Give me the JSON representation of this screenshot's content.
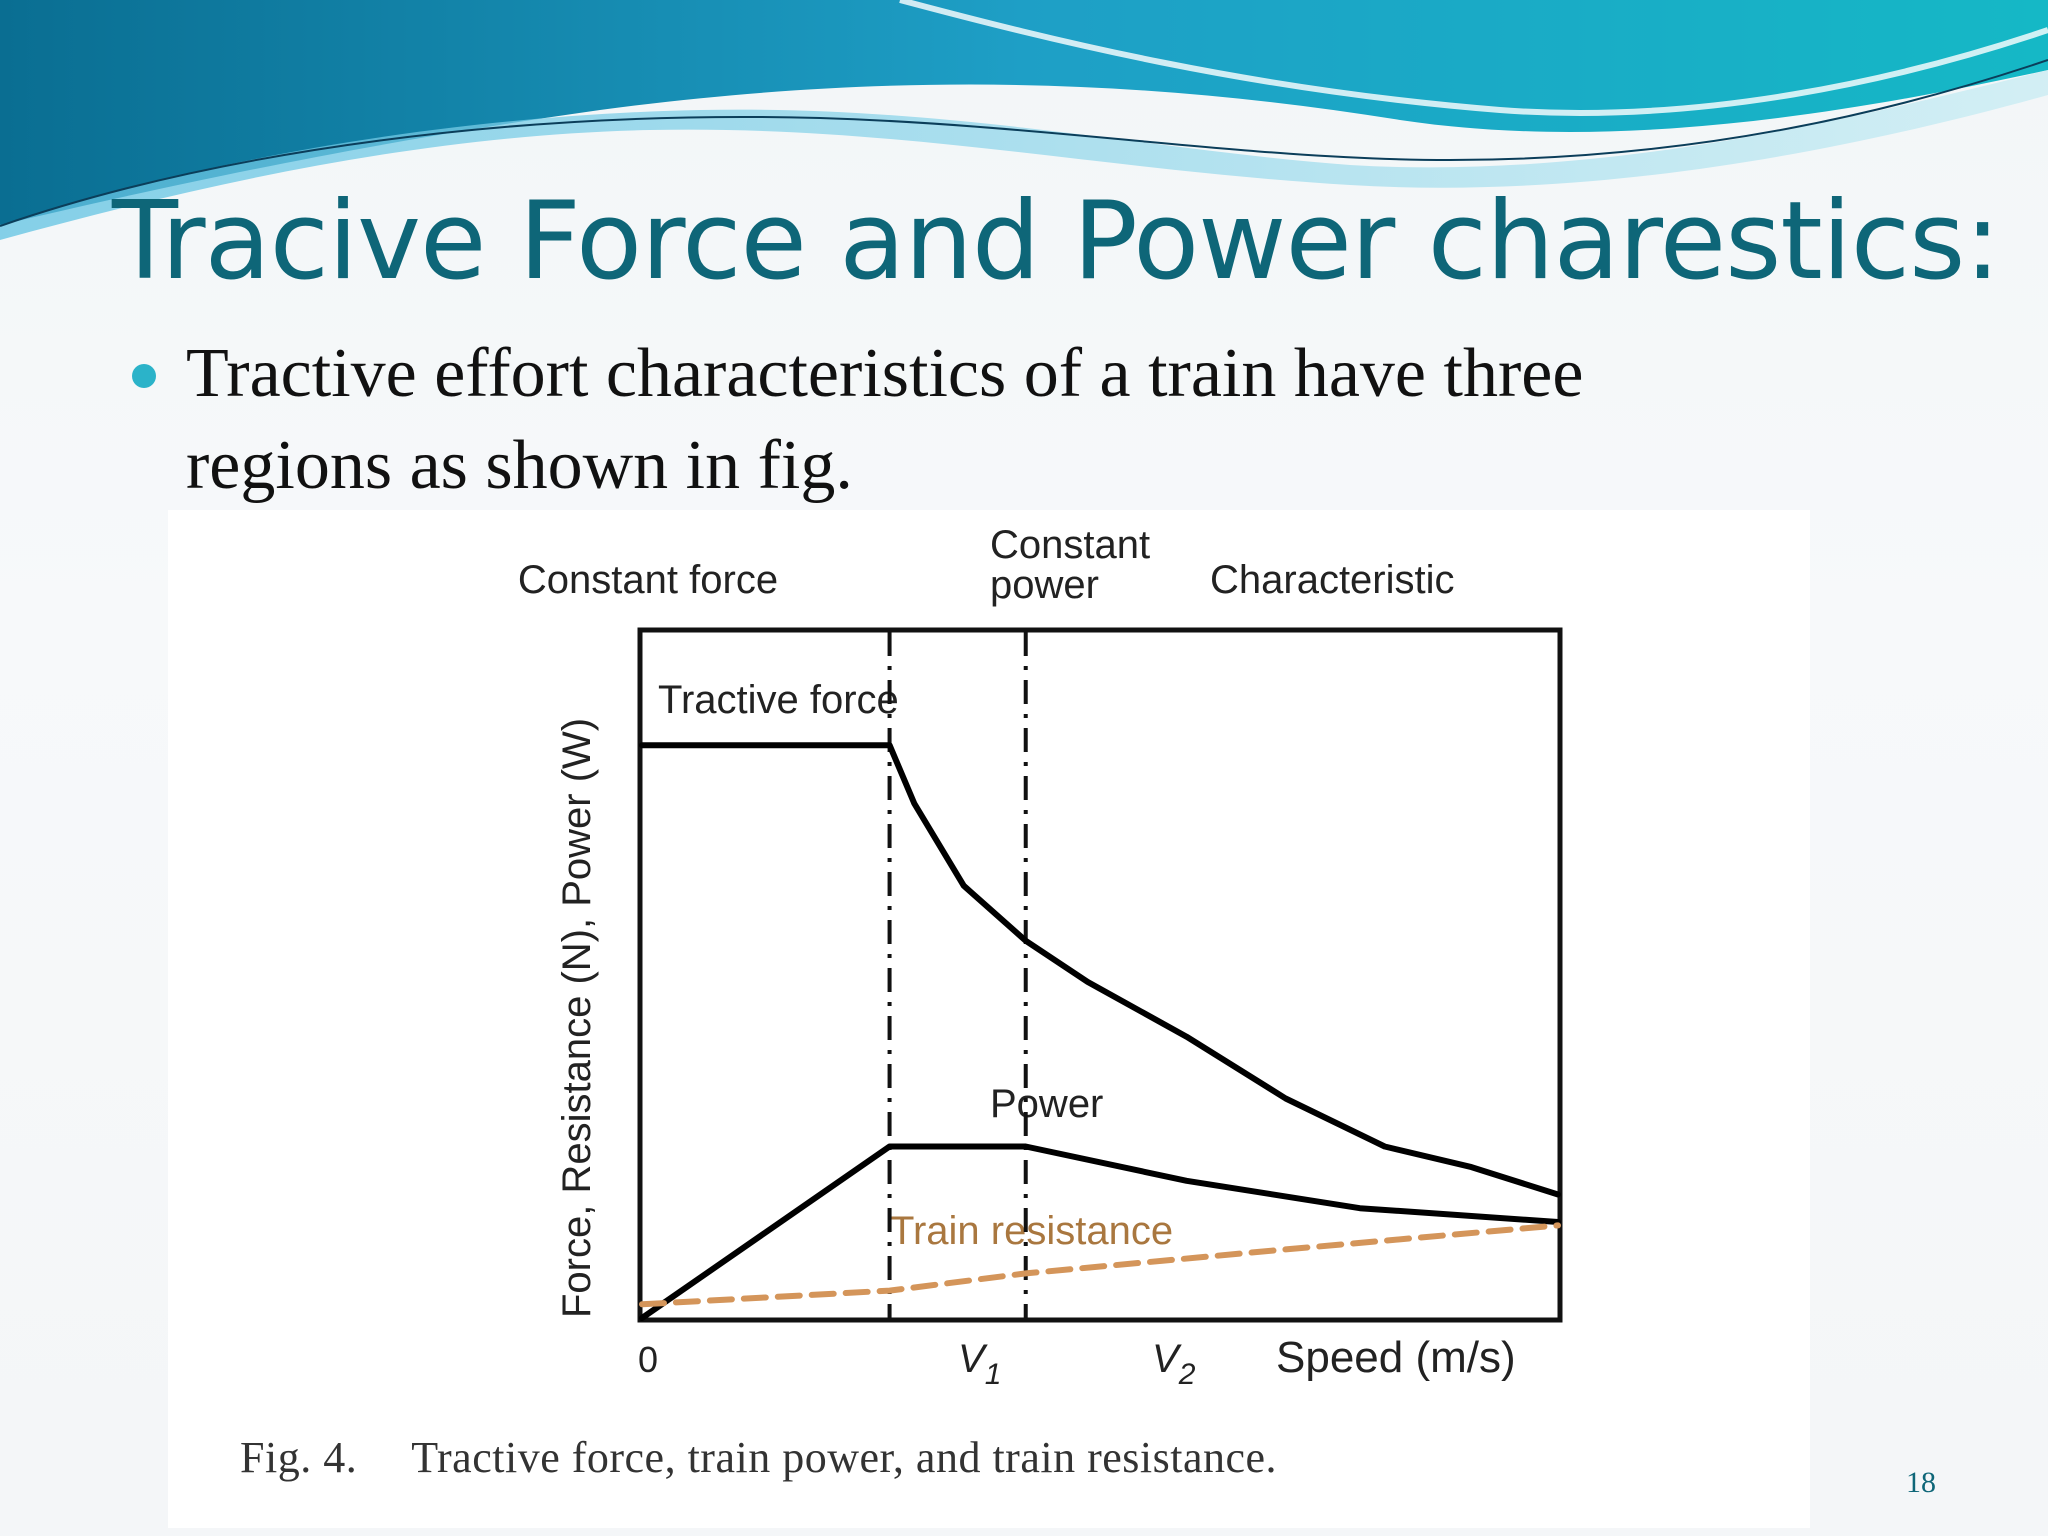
{
  "slide": {
    "title": "Tracive Force and Power charestics:",
    "bullet": "Tractive effort characteristics of a train have three regions as shown in fig.",
    "page_number": "18",
    "accent_color": "#0e6678",
    "bullet_color": "#2bb3c9"
  },
  "figure": {
    "caption_number": "Fig. 4.",
    "caption_text": "Tractive force, train power, and train resistance."
  },
  "chart_data": {
    "type": "line",
    "title": "",
    "xlabel": "Speed (m/s)",
    "ylabel": "Force, Resistance (N), Power (W)",
    "x_tick_labels": [
      "0",
      "V1",
      "V2"
    ],
    "regions": [
      "Constant force",
      "Constant power",
      "Characteristic"
    ],
    "region_boundaries": [
      "V1",
      "V2"
    ],
    "grid": false,
    "axes_note": "qualitative axes; x in units of V1, y relative to tractive force = 1.0",
    "series": [
      {
        "name": "Tractive force",
        "color": "#000000",
        "style": "solid",
        "points": [
          [
            0,
            0.835
          ],
          [
            1,
            0.835
          ],
          [
            1.1,
            0.75
          ],
          [
            1.3,
            0.63
          ],
          [
            1.55,
            0.55
          ],
          [
            1.8,
            0.49
          ],
          [
            2.2,
            0.41
          ],
          [
            2.6,
            0.32
          ],
          [
            3.0,
            0.25
          ],
          [
            3.35,
            0.22
          ],
          [
            3.7,
            0.18
          ]
        ]
      },
      {
        "name": "Power",
        "color": "#000000",
        "style": "solid",
        "points": [
          [
            0,
            0
          ],
          [
            1,
            0.25
          ],
          [
            1.55,
            0.25
          ],
          [
            2.2,
            0.2
          ],
          [
            2.9,
            0.16
          ],
          [
            3.7,
            0.14
          ]
        ]
      },
      {
        "name": "Train resistance",
        "color": "#d4955a",
        "style": "dashed",
        "points": [
          [
            0,
            0.02
          ],
          [
            1.0,
            0.04
          ],
          [
            1.55,
            0.065
          ],
          [
            2.6,
            0.1
          ],
          [
            3.7,
            0.135
          ]
        ]
      }
    ],
    "annotations": [
      "Tractive force",
      "Power",
      "Train resistance"
    ]
  }
}
